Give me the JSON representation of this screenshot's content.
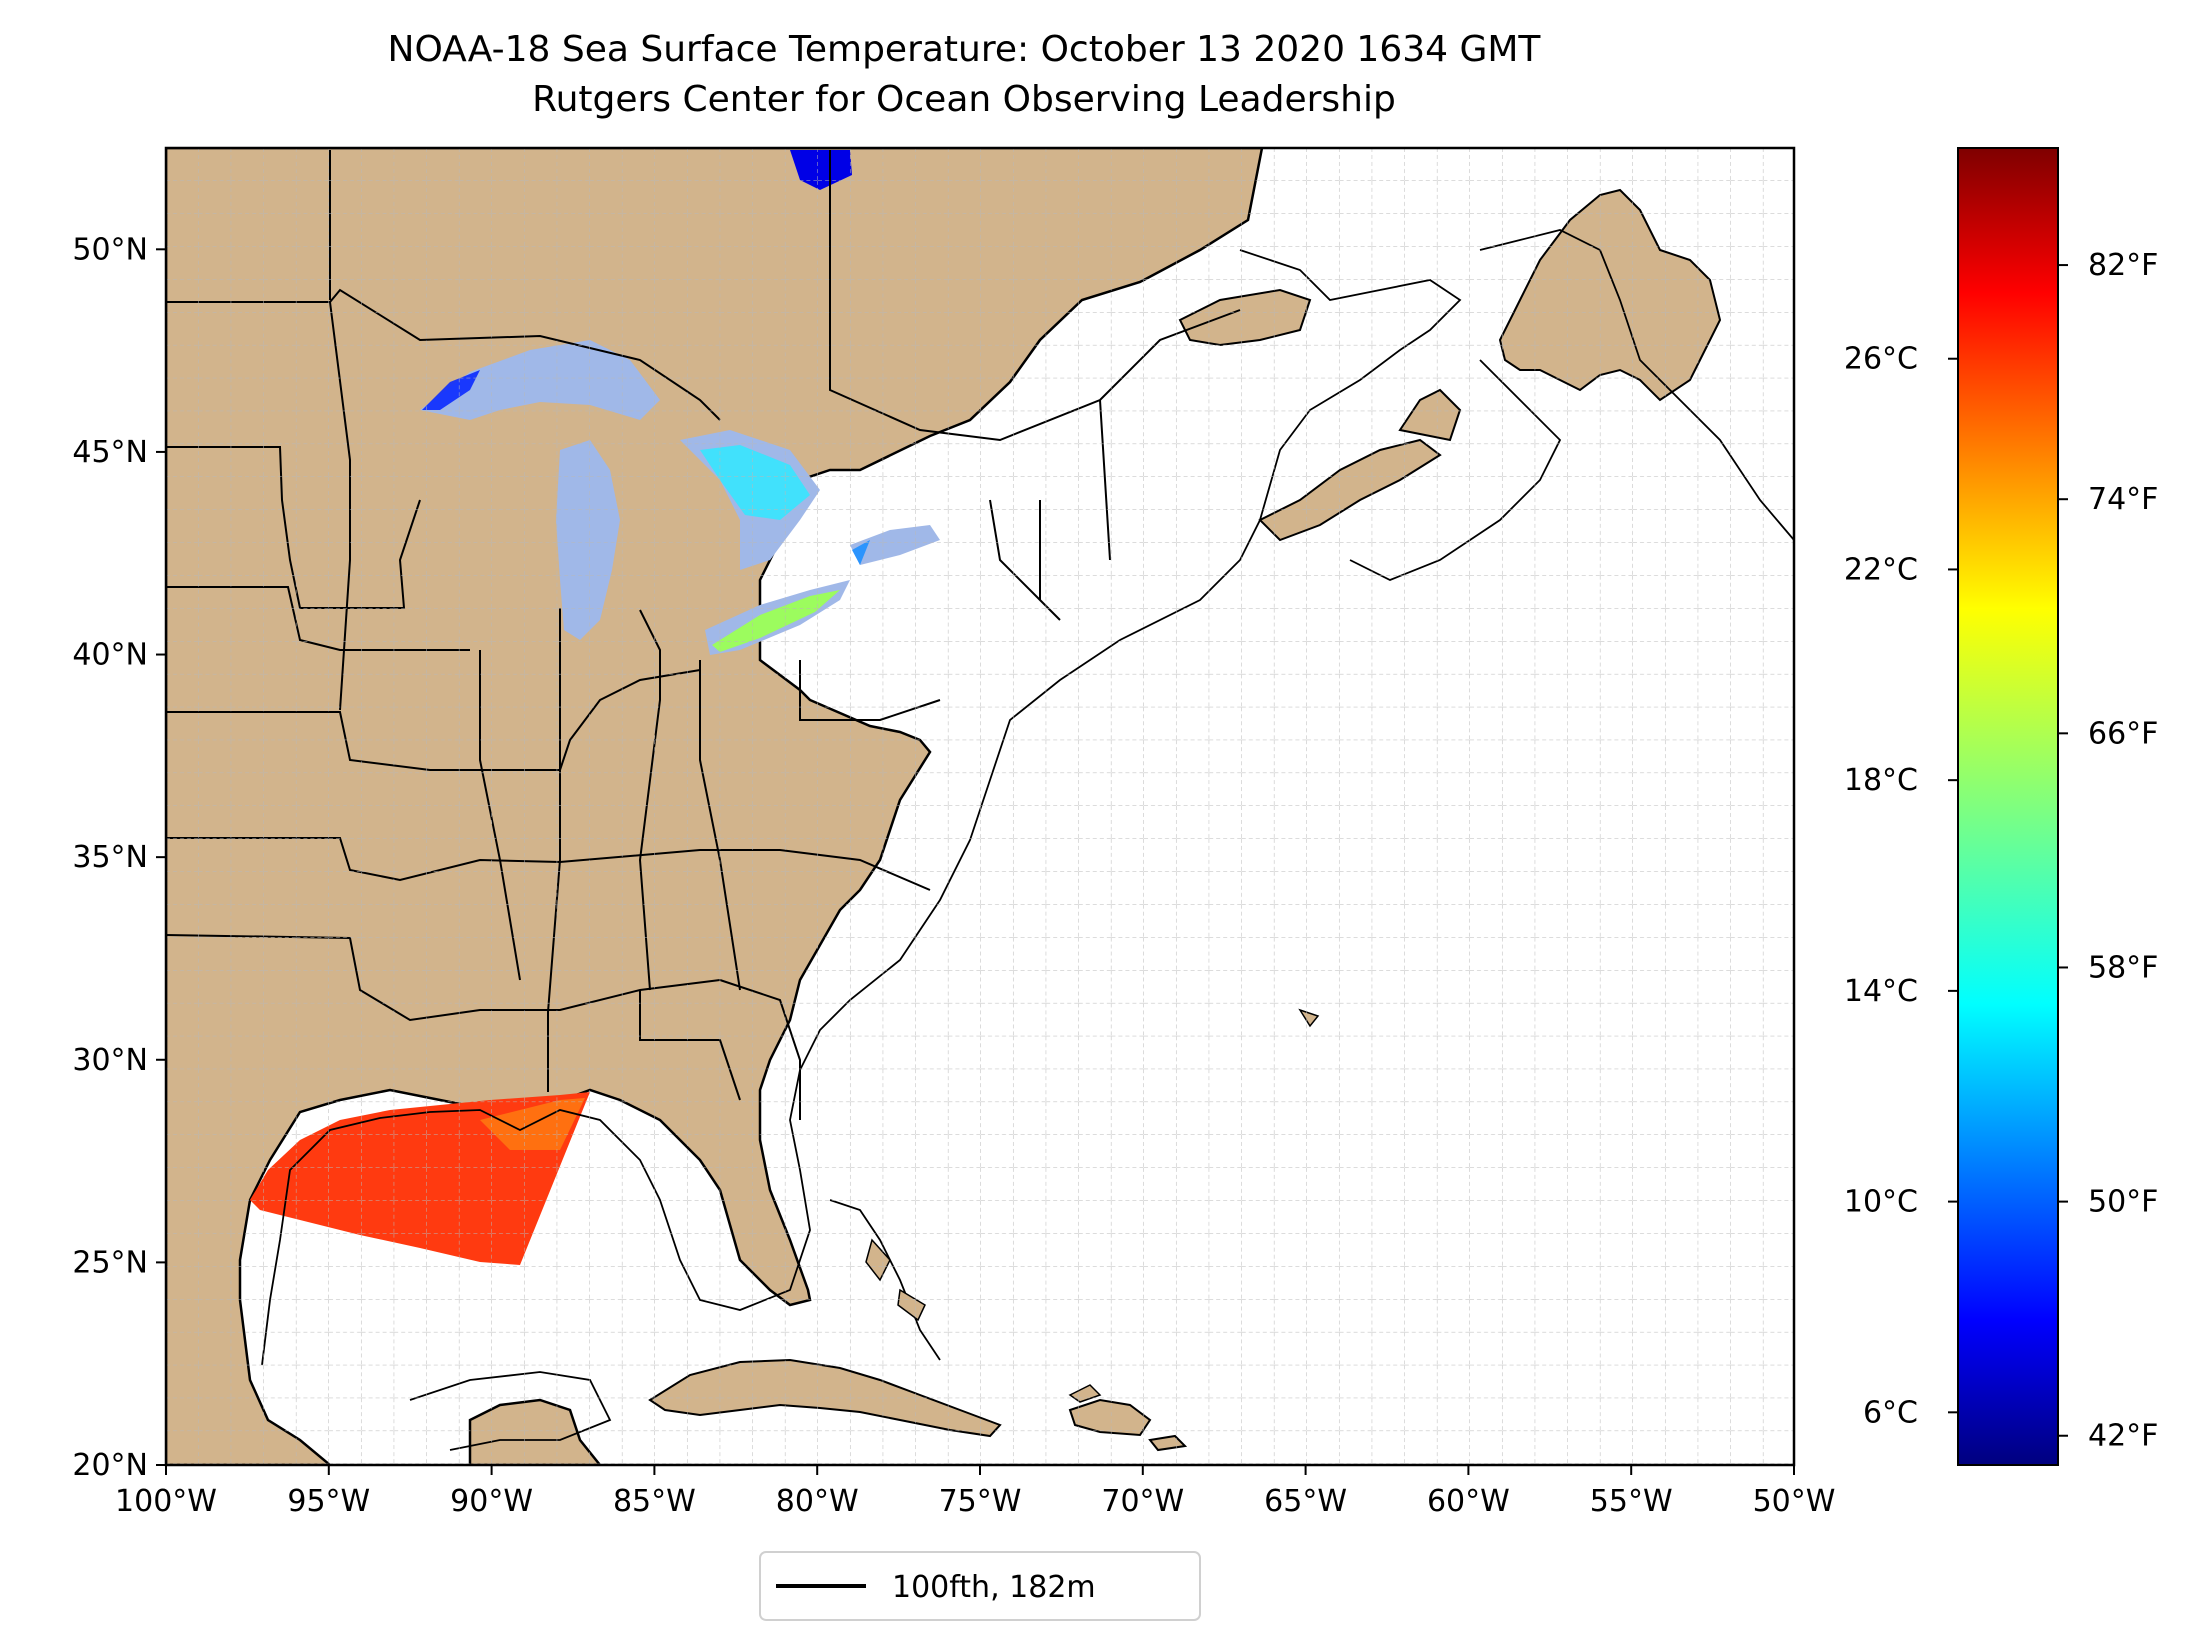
{
  "title": {
    "line1": "NOAA-18 Sea Surface Temperature: October 13 2020 1634 GMT",
    "line2": "Rutgers Center for Ocean Observing Leadership"
  },
  "map": {
    "lat_labels": [
      "50°N",
      "45°N",
      "40°N",
      "35°N",
      "30°N",
      "25°N",
      "20°N"
    ],
    "lon_labels": [
      "100°W",
      "95°W",
      "90°W",
      "85°W",
      "80°W",
      "75°W",
      "70°W",
      "65°W",
      "60°W",
      "55°W",
      "50°W"
    ],
    "lat_values": [
      50,
      45,
      40,
      35,
      30,
      25,
      20
    ],
    "lon_values": [
      -100,
      -95,
      -90,
      -85,
      -80,
      -75,
      -70,
      -65,
      -60,
      -55,
      -50
    ],
    "land_color": "#d2b48c",
    "grid": true
  },
  "legend": {
    "label": "100fth, 182m"
  },
  "colorbar": {
    "colormap": "jet",
    "celsius_labels": [
      "26°C",
      "22°C",
      "18°C",
      "14°C",
      "10°C",
      "6°C"
    ],
    "fahrenheit_labels": [
      "82°F",
      "74°F",
      "66°F",
      "58°F",
      "50°F",
      "42°F"
    ],
    "celsius_values": [
      26,
      22,
      18,
      14,
      10,
      6
    ],
    "fahrenheit_values": [
      82,
      74,
      66,
      58,
      50,
      42
    ],
    "range_c": [
      5.0,
      30.0
    ]
  }
}
